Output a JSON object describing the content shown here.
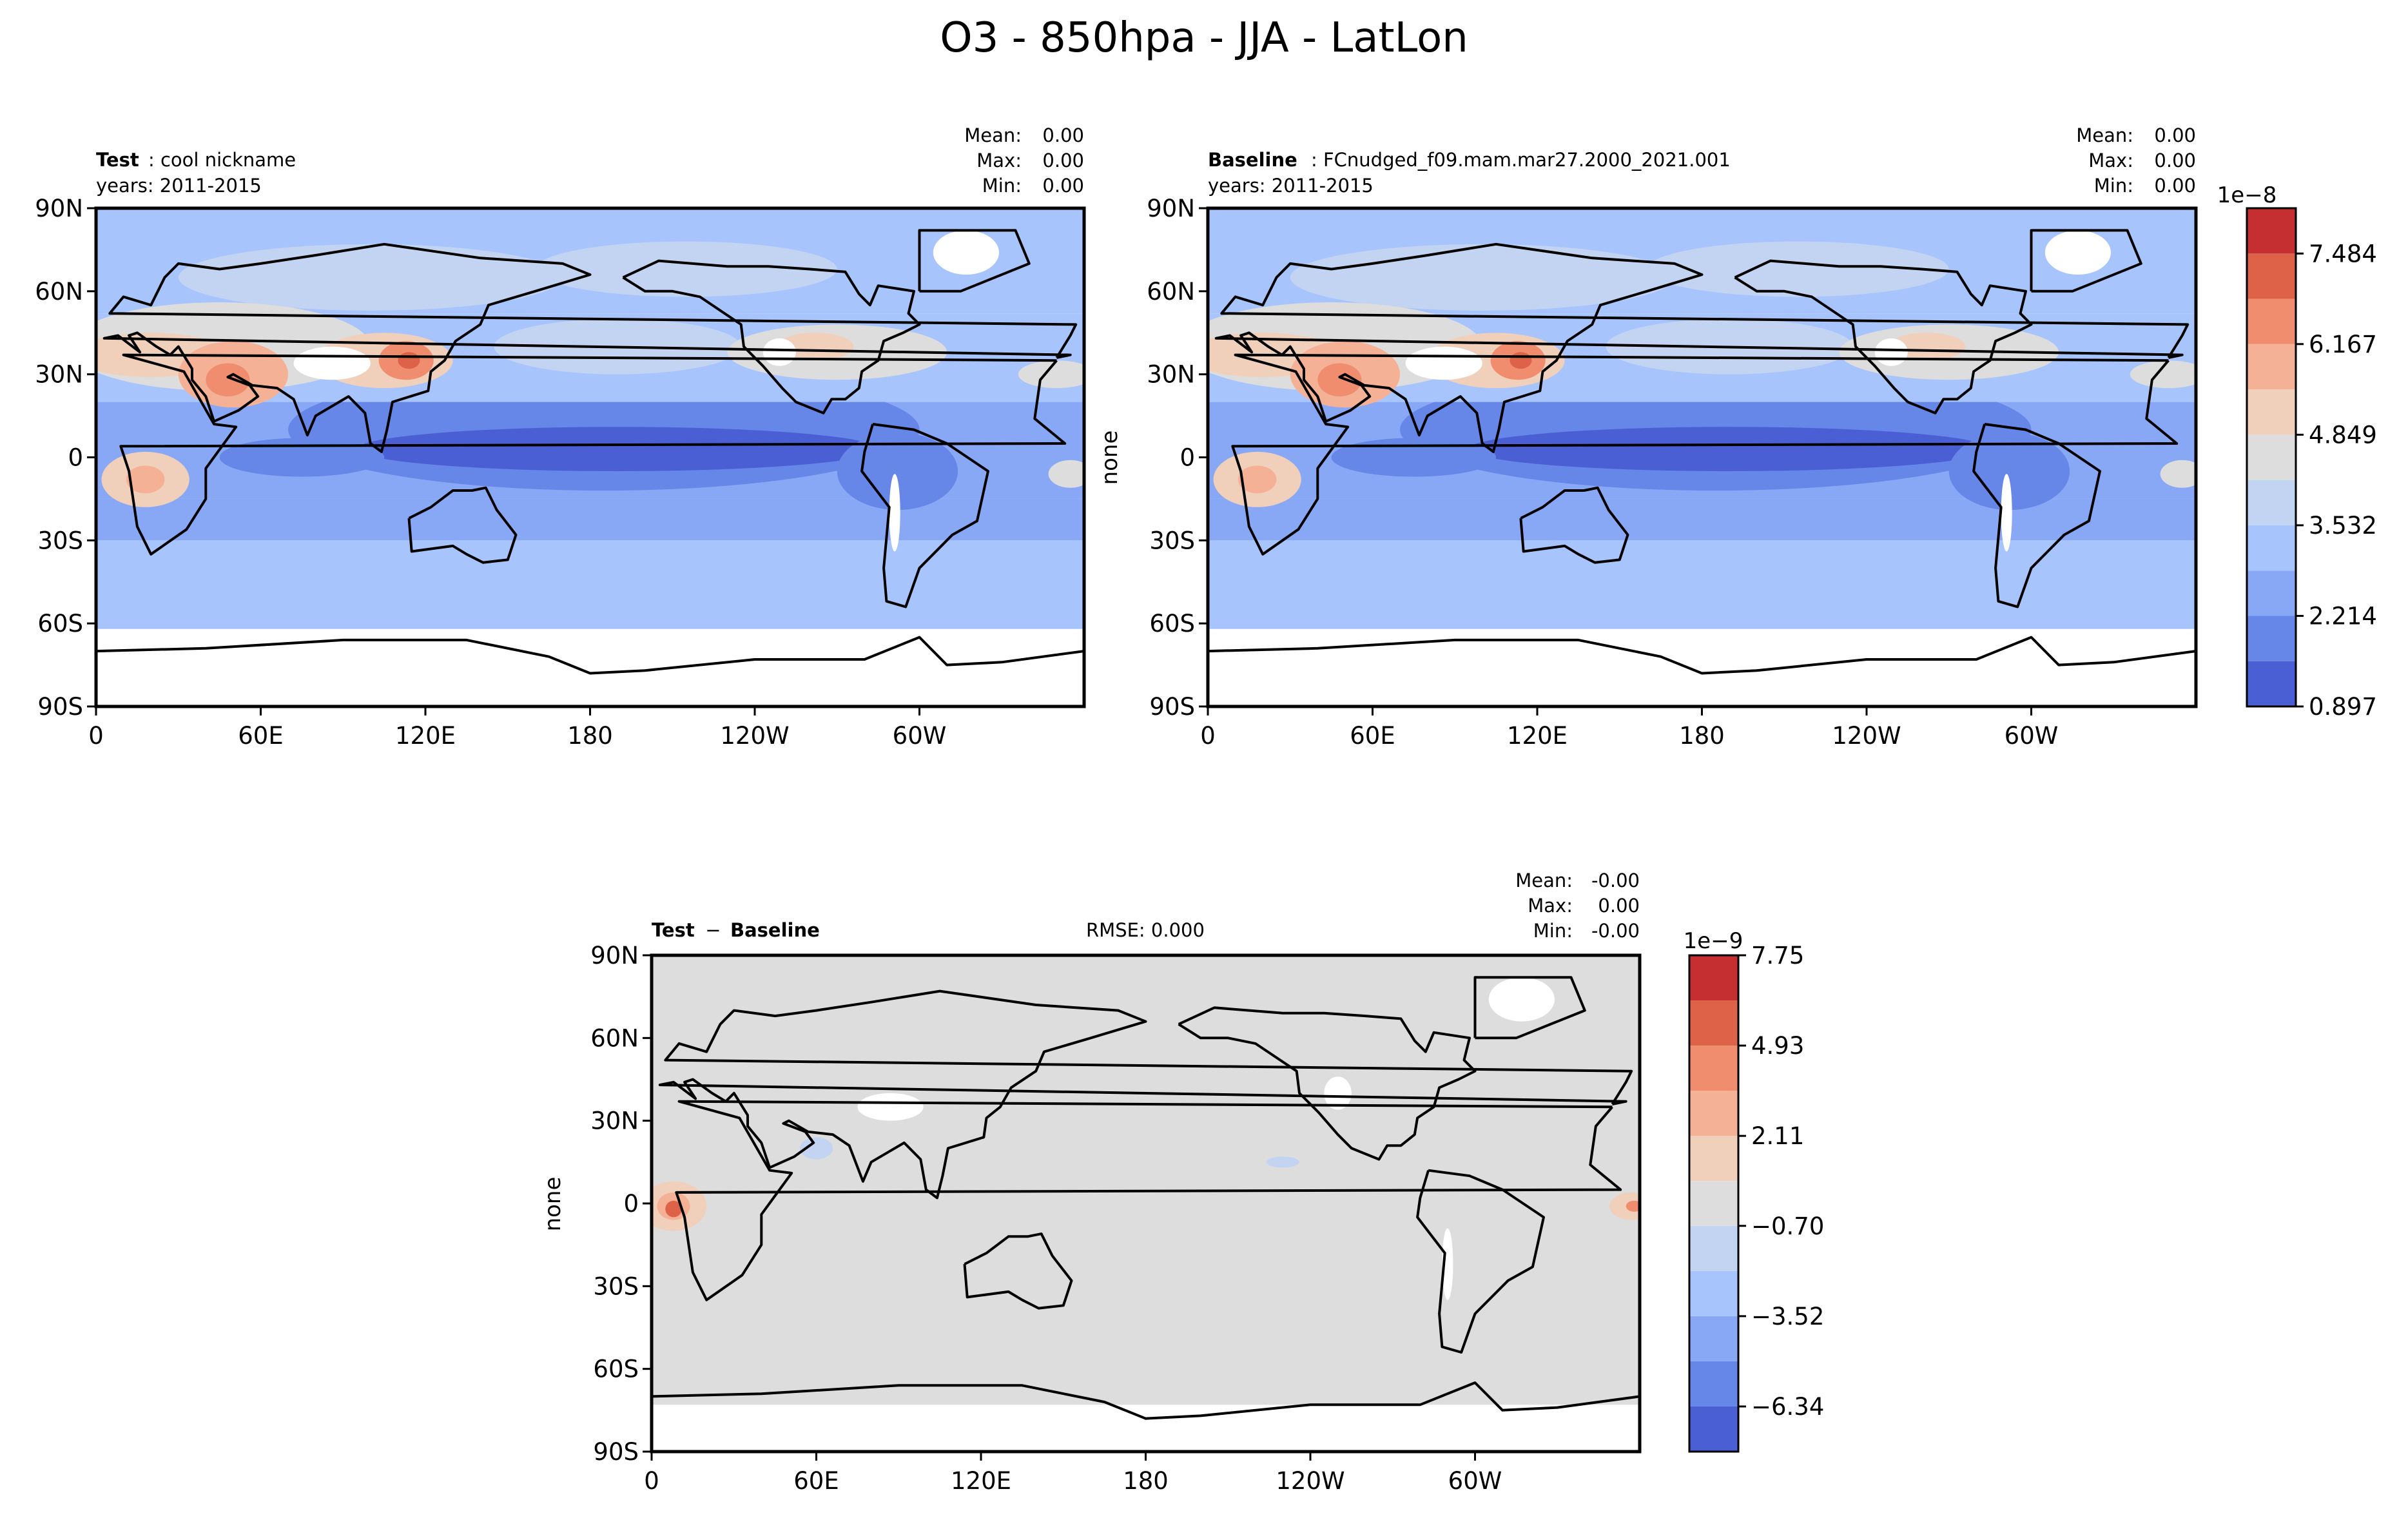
{
  "figure_title": "O3 - 850hpa - JJA - LatLon",
  "colors": {
    "main_levels": [
      "#4a5fd4",
      "#6686e8",
      "#88a8f6",
      "#a7c4fc",
      "#c2d4f2",
      "#dddddd",
      "#f0cfbb",
      "#f5b195",
      "#f08d6f",
      "#de6248",
      "#c52f32"
    ],
    "diff_levels": [
      "#4a5fd4",
      "#6686e8",
      "#88a8f6",
      "#a7c4fc",
      "#c2d4f2",
      "#dddddd",
      "#f0cfbb",
      "#f5b195",
      "#f08d6f",
      "#de6248",
      "#c52f32"
    ],
    "land_missing": "#ffffff",
    "coast": "#000000"
  },
  "chart_data": [
    {
      "type": "heatmap",
      "panel": "test",
      "title_bold": "Test",
      "title_rest": ": cool nickname",
      "subtitle": "years: 2011-2015",
      "stats": {
        "mean_label": "Mean:",
        "mean": "0.00",
        "max_label": "Max:",
        "max": "0.00",
        "min_label": "Min:",
        "min": "0.00"
      },
      "ylabel": "",
      "x_ticks": [
        "0",
        "60E",
        "120E",
        "180",
        "120W",
        "60W"
      ],
      "x_tick_values": [
        0,
        60,
        120,
        180,
        240,
        300
      ],
      "y_ticks": [
        "90N",
        "60N",
        "30N",
        "0",
        "30S",
        "60S",
        "90S"
      ],
      "y_tick_values": [
        90,
        60,
        30,
        0,
        -30,
        -60,
        -90
      ],
      "xlim": [
        0,
        360
      ],
      "ylim": [
        -90,
        90
      ],
      "colorbar": "shared_main"
    },
    {
      "type": "heatmap",
      "panel": "baseline",
      "title_bold": "Baseline",
      "title_rest": ": FCnudged_f09.mam.mar27.2000_2021.001",
      "subtitle": "years: 2011-2015",
      "stats": {
        "mean_label": "Mean:",
        "mean": "0.00",
        "max_label": "Max:",
        "max": "0.00",
        "min_label": "Min:",
        "min": "0.00"
      },
      "ylabel": "none",
      "x_ticks": [
        "0",
        "60E",
        "120E",
        "180",
        "120W",
        "60W"
      ],
      "x_tick_values": [
        0,
        60,
        120,
        180,
        240,
        300
      ],
      "y_ticks": [
        "90N",
        "60N",
        "30N",
        "0",
        "30S",
        "60S",
        "90S"
      ],
      "y_tick_values": [
        90,
        60,
        30,
        0,
        -30,
        -60,
        -90
      ],
      "xlim": [
        0,
        360
      ],
      "ylim": [
        -90,
        90
      ],
      "colorbar": {
        "exponent": "1e−8",
        "tick_labels": [
          "0.897",
          "2.214",
          "3.532",
          "4.849",
          "6.167",
          "7.484"
        ],
        "tick_values": [
          0.897,
          2.214,
          3.532,
          4.849,
          6.167,
          7.484
        ],
        "boundaries": [
          0.897,
          1.556,
          2.214,
          2.873,
          3.532,
          4.191,
          4.849,
          5.508,
          6.167,
          6.826,
          7.484,
          8.143
        ]
      }
    },
    {
      "type": "heatmap",
      "panel": "difference",
      "title_bold": "Test",
      "title_sep": " − ",
      "title_bold2": "Baseline",
      "rmse": "RMSE: 0.000",
      "stats": {
        "mean_label": "Mean:",
        "mean": "-0.00",
        "max_label": "Max:",
        "max": "0.00",
        "min_label": "Min:",
        "min": "-0.00"
      },
      "ylabel": "none",
      "x_ticks": [
        "0",
        "60E",
        "120E",
        "180",
        "120W",
        "60W"
      ],
      "x_tick_values": [
        0,
        60,
        120,
        180,
        240,
        300
      ],
      "y_ticks": [
        "90N",
        "60N",
        "30N",
        "0",
        "30S",
        "60S",
        "90S"
      ],
      "y_tick_values": [
        90,
        60,
        30,
        0,
        -30,
        -60,
        -90
      ],
      "xlim": [
        0,
        360
      ],
      "ylim": [
        -90,
        90
      ],
      "colorbar": {
        "exponent": "1e−9",
        "tick_labels": [
          "7.75",
          "4.93",
          "2.11",
          "−0.70",
          "−3.52",
          "−6.34"
        ],
        "tick_values": [
          7.75,
          4.93,
          2.11,
          -0.7,
          -3.52,
          -6.34
        ],
        "boundaries": [
          -7.75,
          -6.34,
          -4.93,
          -3.52,
          -2.11,
          -0.7,
          0.7,
          2.11,
          3.52,
          4.93,
          6.34,
          7.75
        ]
      }
    }
  ]
}
